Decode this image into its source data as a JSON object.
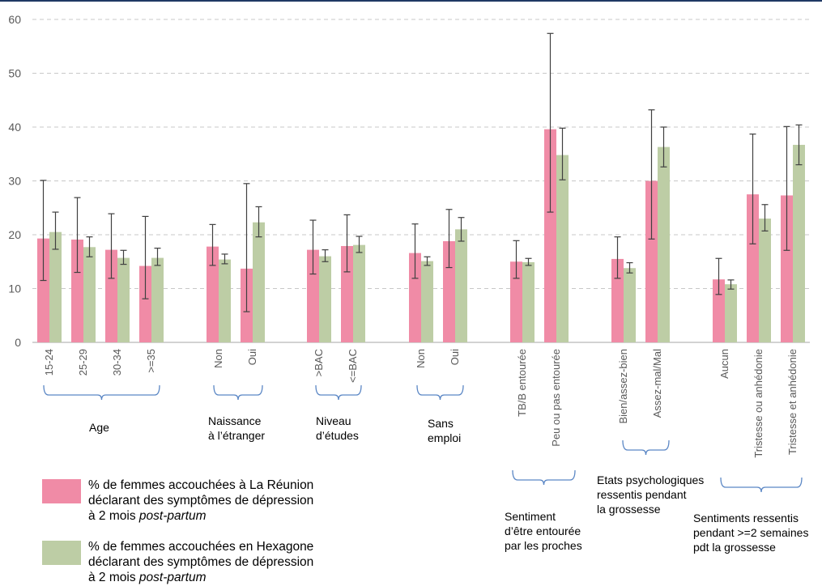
{
  "colors": {
    "reunion": "#F08BA6",
    "hexagone": "#BDCDA5",
    "error": "#404040",
    "grid": "#C8C8C8",
    "brace": "#5B87C5"
  },
  "chart_data": {
    "type": "bar",
    "ylim": [
      0,
      60
    ],
    "yticks": [
      "0",
      "10",
      "20",
      "30",
      "40",
      "50",
      "60"
    ],
    "grid": "dashed horizontal",
    "categories": [
      "15-24",
      "25-29",
      "30-34",
      ">=35",
      "Non",
      "Oui",
      ">BAC",
      "<=BAC",
      "Non",
      "Oui",
      "TB/B entourée",
      "Peu ou pas entourée",
      "Bien/assez-bien",
      "Assez-mal/Mal",
      "Aucun",
      "Tristesse ou anhédonie",
      "Tristesse et anhédonie"
    ],
    "series": [
      {
        "name": "% de femmes accouchées à La Réunion déclarant des symptômes de dépression à 2 mois post-partum",
        "values": [
          19.3,
          19.1,
          17.2,
          14.2,
          17.8,
          13.7,
          17.2,
          17.9,
          16.6,
          18.8,
          15.0,
          39.6,
          15.5,
          30.0,
          11.7,
          27.5,
          27.3
        ],
        "err_low": [
          11.5,
          13.0,
          11.9,
          8.1,
          14.3,
          5.7,
          12.7,
          13.1,
          11.9,
          13.9,
          11.9,
          24.2,
          11.9,
          19.2,
          8.9,
          18.3,
          17.1
        ],
        "err_high": [
          30.1,
          26.9,
          23.9,
          23.4,
          21.9,
          29.5,
          22.7,
          23.7,
          22.0,
          24.7,
          18.9,
          57.4,
          19.6,
          43.2,
          15.6,
          38.7,
          40.1
        ]
      },
      {
        "name": "% de femmes accouchées en Hexagone déclarant des symptômes de dépression à 2 mois post-partum",
        "values": [
          20.5,
          17.7,
          15.7,
          15.7,
          15.4,
          22.3,
          16.0,
          18.1,
          15.1,
          21.0,
          14.9,
          34.8,
          13.8,
          36.3,
          10.8,
          23.0,
          36.7
        ],
        "err_low": [
          17.3,
          15.9,
          14.5,
          14.3,
          14.6,
          19.6,
          15.0,
          16.7,
          14.3,
          18.8,
          14.3,
          30.2,
          12.9,
          32.6,
          9.9,
          20.7,
          33.0
        ],
        "err_high": [
          24.2,
          19.6,
          17.1,
          17.5,
          16.4,
          25.2,
          17.2,
          19.7,
          15.9,
          23.2,
          15.6,
          39.8,
          14.8,
          40.0,
          11.6,
          25.6,
          40.4
        ]
      }
    ]
  },
  "groups": [
    {
      "label": "Age"
    },
    {
      "label": "Naissance\nà l’étranger"
    },
    {
      "label": "Niveau\nd’études"
    },
    {
      "label": "Sans\nemploi"
    },
    {
      "label": "Sentiment\nd’être entourée\npar les proches"
    },
    {
      "label": "Etats psychologiques\nressentis pendant\nla grossesse"
    },
    {
      "label": "Sentiments ressentis\npendant >=2 semaines\npdt la grossesse"
    }
  ],
  "legend": [
    {
      "line1": "% de femmes accouchées à La Réunion",
      "line2": "déclarant des symptômes de dépression",
      "line3a": "à 2 mois ",
      "line3b": "post-partum"
    },
    {
      "line1": "% de femmes accouchées en Hexagone",
      "line2": "déclarant des symptômes de dépression",
      "line3a": "à 2 mois ",
      "line3b": "post-partum"
    }
  ]
}
